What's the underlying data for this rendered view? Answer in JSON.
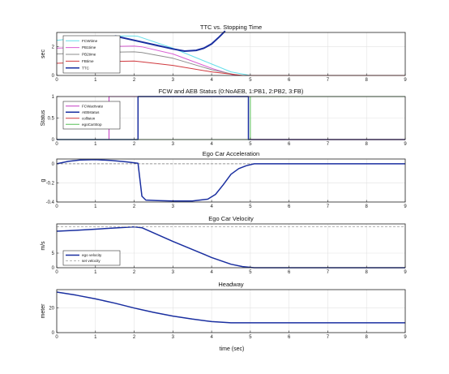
{
  "figure": {
    "xlabel": "time (sec)"
  },
  "chart_data": [
    {
      "type": "line",
      "title": "TTC vs. Stopping Time",
      "ylabel": "sec",
      "xlim": [
        0,
        9
      ],
      "ylim": [
        0,
        3
      ],
      "xticks": [
        0,
        1,
        2,
        3,
        4,
        5,
        6,
        7,
        8,
        9
      ],
      "yticks": [
        0,
        2
      ],
      "grid": true,
      "legend": "top-left",
      "series": [
        {
          "name": "FCWtime",
          "color": "#66dfea",
          "width": 1,
          "x": [
            0,
            0.5,
            1,
            1.5,
            2,
            2.1,
            3,
            4,
            4.5,
            5,
            5.5,
            9
          ],
          "y": [
            2.45,
            2.6,
            2.7,
            2.75,
            2.75,
            2.73,
            1.9,
            0.8,
            0.25,
            0,
            0,
            0
          ]
        },
        {
          "name": "PB1time",
          "color": "#d95ed3",
          "width": 1,
          "x": [
            0,
            1,
            2,
            2.2,
            3,
            4,
            4.6,
            9
          ],
          "y": [
            1.9,
            2.0,
            2.05,
            2.0,
            1.5,
            0.5,
            0,
            0
          ]
        },
        {
          "name": "PB2time",
          "color": "#8e8e8e",
          "width": 1,
          "x": [
            0,
            1,
            2,
            2.2,
            3,
            4,
            4.7,
            9
          ],
          "y": [
            1.5,
            1.6,
            1.65,
            1.6,
            1.2,
            0.4,
            0,
            0
          ]
        },
        {
          "name": "FBtime",
          "color": "#d0393e",
          "width": 1,
          "x": [
            0,
            1,
            2,
            2.2,
            3,
            4,
            4.8,
            9
          ],
          "y": [
            0.85,
            0.95,
            1.0,
            0.95,
            0.7,
            0.25,
            0,
            0
          ]
        },
        {
          "name": "TTC",
          "color": "#1a2fa0",
          "width": 2,
          "x": [
            1.5,
            2.0,
            2.5,
            3.0,
            3.3,
            3.6,
            3.8,
            4.0,
            4.2,
            4.35
          ],
          "y": [
            2.75,
            2.45,
            2.15,
            1.85,
            1.7,
            1.75,
            1.9,
            2.2,
            2.7,
            3.1
          ]
        }
      ]
    },
    {
      "type": "line",
      "title": "FCW and AEB Status (0:NoAEB, 1:PB1, 2:PB2, 3:FB)",
      "ylabel": "Status",
      "xlim": [
        0,
        9
      ],
      "ylim": [
        0,
        1
      ],
      "xticks": [
        0,
        1,
        2,
        3,
        4,
        5,
        6,
        7,
        8,
        9
      ],
      "yticks": [
        0,
        0.5,
        1
      ],
      "grid": true,
      "legend": "top-left",
      "series": [
        {
          "name": "FCWactivate",
          "color": "#c43bc4",
          "width": 1,
          "x": [
            0,
            1.35,
            1.35,
            9
          ],
          "y": [
            0,
            0,
            1,
            1
          ]
        },
        {
          "name": "AEBstatus",
          "color": "#1a2fa0",
          "width": 1.5,
          "x": [
            0,
            2.1,
            2.1,
            4.95,
            4.95,
            9
          ],
          "y": [
            0,
            0,
            1,
            1,
            0,
            0
          ]
        },
        {
          "name": "collision",
          "color": "#d0393e",
          "width": 1,
          "x": [
            0,
            9
          ],
          "y": [
            0,
            0
          ]
        },
        {
          "name": "egoCarStop",
          "color": "#58c058",
          "width": 1,
          "x": [
            0,
            5.0,
            5.0,
            9
          ],
          "y": [
            0,
            0,
            1,
            1
          ]
        }
      ]
    },
    {
      "type": "line",
      "title": "Ego Car Acceleration",
      "ylabel": "g",
      "xlim": [
        0,
        9
      ],
      "ylim": [
        -0.4,
        0.05
      ],
      "xticks": [
        0,
        1,
        2,
        3,
        4,
        5,
        6,
        7,
        8,
        9
      ],
      "yticks": [
        -0.4,
        -0.2,
        0
      ],
      "grid": true,
      "reference_line": 0,
      "series": [
        {
          "name": "",
          "color": "#1a2fa0",
          "width": 1.5,
          "x": [
            0,
            0.3,
            0.6,
            1.0,
            1.4,
            1.8,
            2.1,
            2.2,
            2.3,
            2.6,
            3.0,
            3.5,
            3.9,
            4.1,
            4.3,
            4.5,
            4.7,
            4.9,
            5.1,
            9
          ],
          "y": [
            0,
            0.025,
            0.04,
            0.043,
            0.035,
            0.02,
            0.005,
            -0.34,
            -0.38,
            -0.385,
            -0.39,
            -0.39,
            -0.37,
            -0.32,
            -0.22,
            -0.11,
            -0.05,
            -0.02,
            0,
            0
          ]
        }
      ]
    },
    {
      "type": "line",
      "title": "Ego Car Velocity",
      "ylabel": "m/s",
      "xlim": [
        0,
        9
      ],
      "ylim": [
        0,
        15
      ],
      "xticks": [
        0,
        1,
        2,
        3,
        4,
        5,
        6,
        7,
        8,
        9
      ],
      "yticks": [
        0,
        5
      ],
      "grid": true,
      "legend": "bottom-left",
      "series": [
        {
          "name": "ego velocity",
          "color": "#1a2fa0",
          "width": 1.5,
          "x": [
            0,
            0.5,
            1,
            1.5,
            2,
            2.2,
            3,
            4,
            4.5,
            4.8,
            5.1,
            9
          ],
          "y": [
            12.5,
            12.8,
            13.2,
            13.6,
            14.0,
            13.7,
            9.0,
            3.5,
            1.2,
            0.4,
            0,
            0
          ]
        },
        {
          "name": "set velocity",
          "color": "#9a9a9a",
          "width": 0.8,
          "dash": "3,2",
          "x": [
            0,
            9
          ],
          "y": [
            14.0,
            14.0
          ]
        }
      ]
    },
    {
      "type": "line",
      "title": "Headway",
      "ylabel": "meter",
      "xlabel": "time (sec)",
      "xlim": [
        0,
        9
      ],
      "ylim": [
        0,
        35
      ],
      "xticks": [
        0,
        1,
        2,
        3,
        4,
        5,
        6,
        7,
        8,
        9
      ],
      "yticks": [
        0,
        20
      ],
      "grid": true,
      "series": [
        {
          "name": "",
          "color": "#1a2fa0",
          "width": 1.5,
          "x": [
            0,
            0.5,
            1,
            1.5,
            2,
            2.5,
            3,
            3.5,
            4,
            4.5,
            5,
            9
          ],
          "y": [
            33,
            30.5,
            27.5,
            24,
            20,
            16.5,
            13.5,
            11,
            9,
            8,
            8,
            8
          ]
        }
      ]
    }
  ]
}
